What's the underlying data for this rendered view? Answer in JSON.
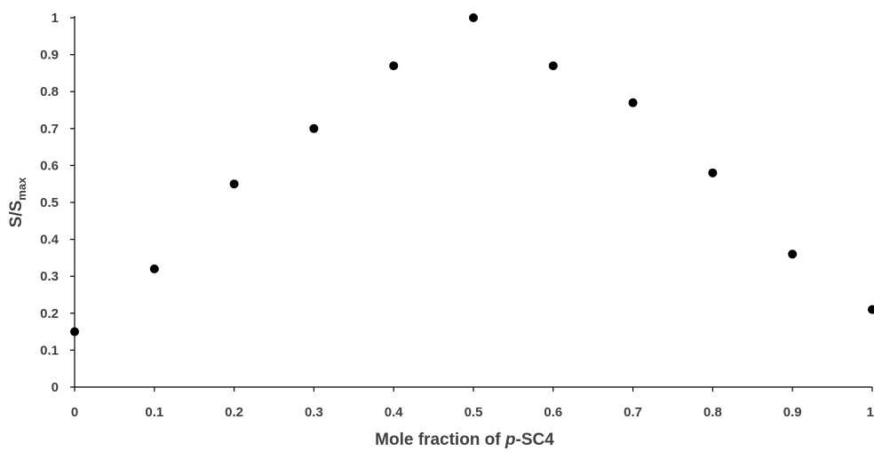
{
  "chart_data": {
    "type": "scatter",
    "title": "",
    "xlabel_prefix": "Mole fraction of ",
    "xlabel_italic": "p",
    "xlabel_suffix": "-SC4",
    "ylabel_main": "S/S",
    "ylabel_sub": "max",
    "xlim": [
      0,
      1
    ],
    "ylim": [
      0,
      1
    ],
    "x_ticks": [
      "0",
      "0.1",
      "0.2",
      "0.3",
      "0.4",
      "0.5",
      "0.6",
      "0.7",
      "0.8",
      "0.9",
      "1"
    ],
    "y_ticks": [
      "0",
      "0.1",
      "0.2",
      "0.3",
      "0.4",
      "0.5",
      "0.6",
      "0.7",
      "0.8",
      "0.9",
      "1"
    ],
    "grid": false,
    "legend": "none",
    "marker_color": "#000000",
    "text_color": "#404040",
    "series": [
      {
        "points": [
          {
            "x": 0,
            "y": 0.15
          },
          {
            "x": 0.1,
            "y": 0.32
          },
          {
            "x": 0.2,
            "y": 0.55
          },
          {
            "x": 0.3,
            "y": 0.7
          },
          {
            "x": 0.4,
            "y": 0.87
          },
          {
            "x": 0.5,
            "y": 1.0
          },
          {
            "x": 0.6,
            "y": 0.87
          },
          {
            "x": 0.7,
            "y": 0.77
          },
          {
            "x": 0.8,
            "y": 0.58
          },
          {
            "x": 0.9,
            "y": 0.36
          },
          {
            "x": 1.0,
            "y": 0.21
          }
        ]
      }
    ]
  }
}
